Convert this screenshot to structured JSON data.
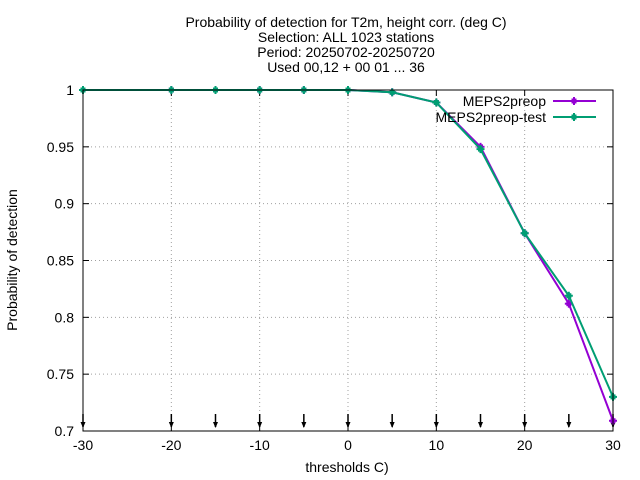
{
  "chart_data": {
    "type": "line",
    "title_lines": [
      "Probability of detection  for T2m, height corr. (deg C)",
      "Selection: ALL    1023 stations",
      "Period: 20250702-20250720",
      "Used 00,12 + 00 01 ... 36"
    ],
    "xlabel": "thresholds C)",
    "ylabel": "Probability of detection",
    "xlim": [
      -30,
      30
    ],
    "ylim": [
      0.7,
      1.0
    ],
    "xticks": [
      -30,
      -20,
      -10,
      0,
      10,
      20,
      30
    ],
    "yticks": [
      0.7,
      0.75,
      0.8,
      0.85,
      0.9,
      0.95,
      1.0
    ],
    "ytick_labels": [
      "0.7",
      "0.75",
      "0.8",
      "0.85",
      "0.9",
      "0.95",
      "1"
    ],
    "grid": true,
    "legend_position": "top-right",
    "x": [
      -30,
      -20,
      -15,
      -10,
      -5,
      0,
      5,
      10,
      15,
      20,
      25,
      30
    ],
    "series": [
      {
        "name": "MEPS2preop",
        "color": "#9400d3",
        "values": [
          1.0,
          1.0,
          1.0,
          1.0,
          1.0,
          1.0,
          0.998,
          0.989,
          0.95,
          0.874,
          0.812,
          0.709
        ]
      },
      {
        "name": "MEPS2preop-test",
        "color": "#009e73",
        "values": [
          1.0,
          1.0,
          1.0,
          1.0,
          1.0,
          1.0,
          0.998,
          0.989,
          0.948,
          0.874,
          0.819,
          0.73
        ]
      }
    ],
    "threshold_markers": [
      -30,
      -20,
      -15,
      -10,
      -5,
      0,
      5,
      10,
      15,
      20,
      25,
      30
    ]
  }
}
